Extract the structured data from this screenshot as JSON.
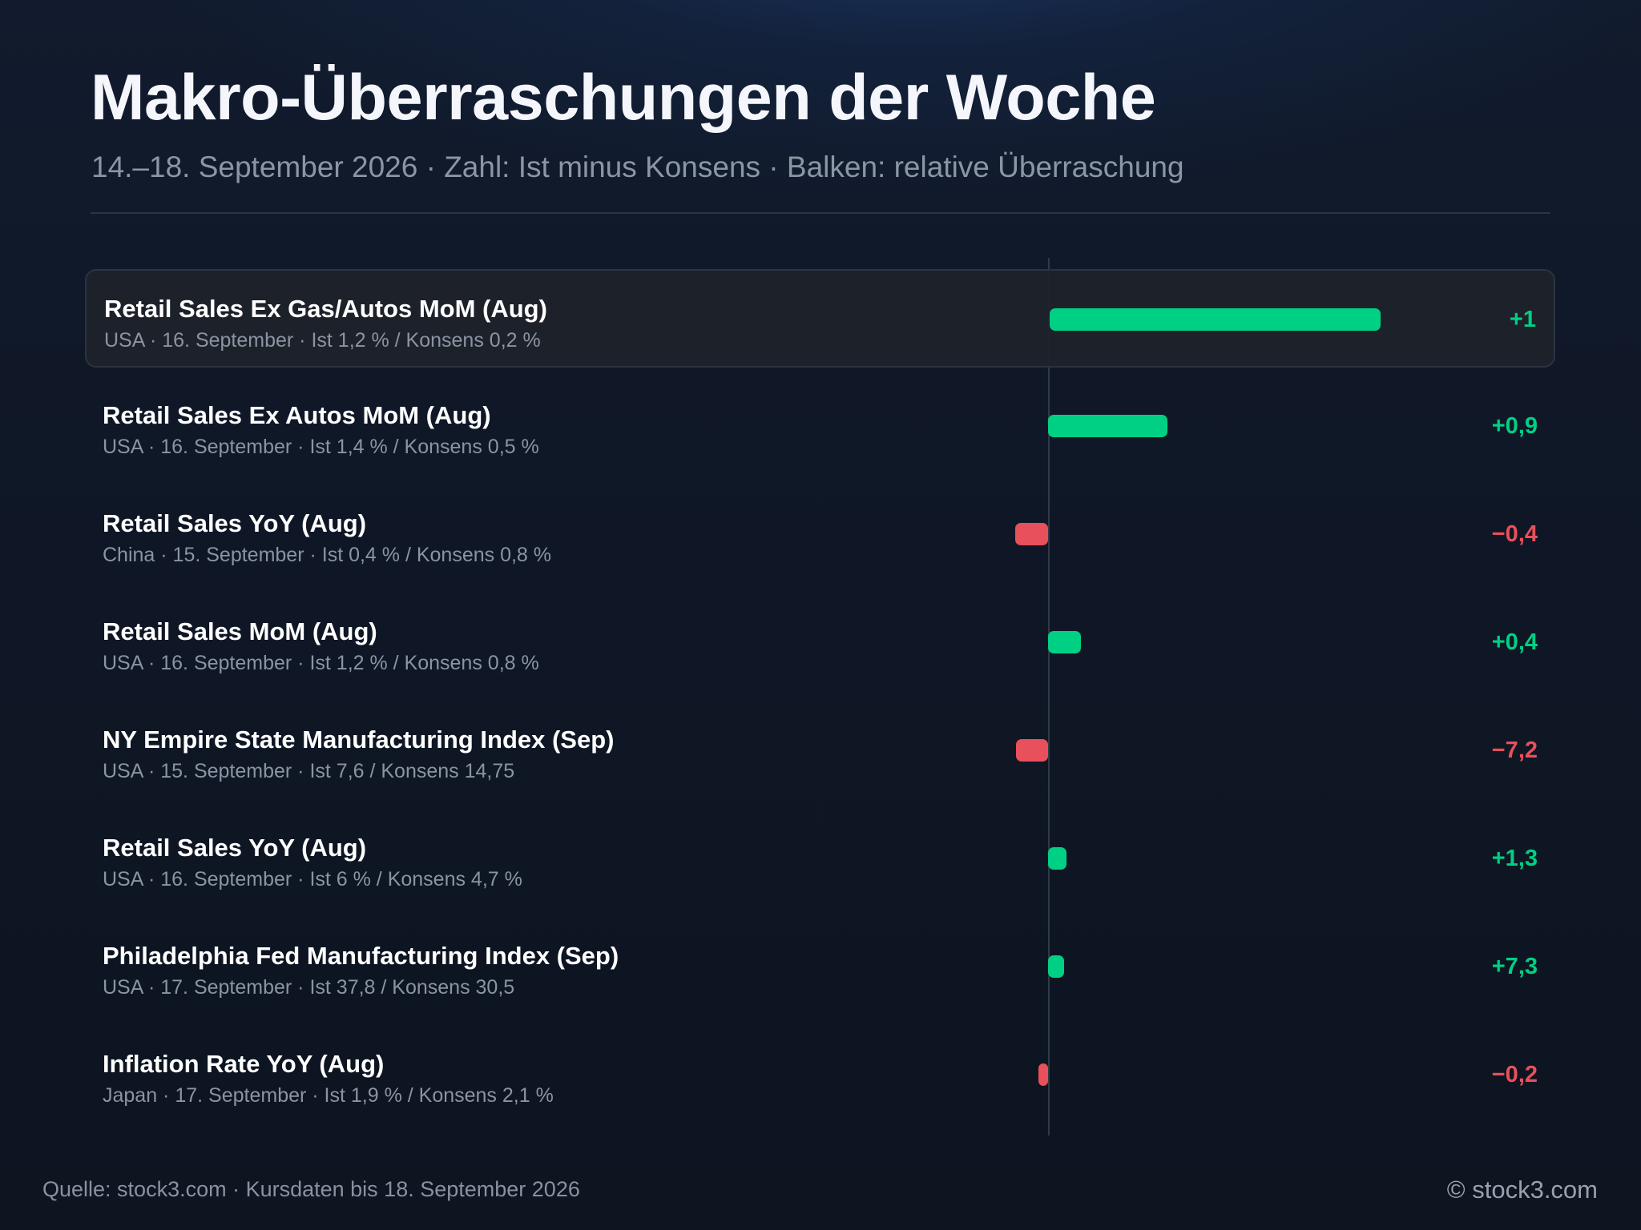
{
  "title": "Makro-Überraschungen der Woche",
  "subtitle": "14.–18. September 2026 · Zahl: Ist minus Konsens · Balken: relative Überraschung",
  "footer": {
    "source": "Quelle: stock3.com · Kursdaten bis 18. September 2026",
    "copyright": "© stock3.com"
  },
  "colors": {
    "positive": "#00d084",
    "negative": "#e8505b"
  },
  "chart_data": {
    "type": "bar",
    "orientation": "horizontal",
    "title": "Makro-Überraschungen der Woche",
    "subtitle": "14.–18. September 2026 · Zahl: Ist minus Konsens · Balken: relative Überraschung",
    "categories": [
      "Retail Sales Ex Gas/Autos MoM (Aug)",
      "Retail Sales Ex Autos MoM (Aug)",
      "Retail Sales YoY (Aug)",
      "Retail Sales MoM (Aug)",
      "NY Empire State Manufacturing Index (Sep)",
      "Retail Sales YoY (Aug)",
      "Philadelphia Fed Manufacturing Index (Sep)",
      "Inflation Rate YoY (Aug)"
    ],
    "rows": [
      {
        "label": "Retail Sales Ex Gas/Autos MoM (Aug)",
        "meta": "USA · 16. September · Ist 1,2 % / Konsens 0,2 %",
        "value": 1,
        "value_label": "+1",
        "relative": 5.0,
        "highlight": true
      },
      {
        "label": "Retail Sales Ex Autos MoM (Aug)",
        "meta": "USA · 16. September · Ist 1,4 % / Konsens 0,5 %",
        "value": 0.9,
        "value_label": "+0,9",
        "relative": 1.8
      },
      {
        "label": "Retail Sales YoY (Aug)",
        "meta": "China · 15. September · Ist 0,4 % / Konsens 0,8 %",
        "value": -0.4,
        "value_label": "−0,4",
        "relative": -0.5
      },
      {
        "label": "Retail Sales MoM (Aug)",
        "meta": "USA · 16. September · Ist 1,2 % / Konsens 0,8 %",
        "value": 0.4,
        "value_label": "+0,4",
        "relative": 0.5
      },
      {
        "label": "NY Empire State Manufacturing Index (Sep)",
        "meta": "USA · 15. September · Ist 7,6 / Konsens 14,75",
        "value": -7.2,
        "value_label": "−7,2",
        "relative": -0.49
      },
      {
        "label": "Retail Sales YoY (Aug)",
        "meta": "USA · 16. September · Ist 6 % / Konsens 4,7 %",
        "value": 1.3,
        "value_label": "+1,3",
        "relative": 0.28
      },
      {
        "label": "Philadelphia Fed Manufacturing Index (Sep)",
        "meta": "USA · 17. September · Ist 37,8 / Konsens 30,5",
        "value": 7.3,
        "value_label": "+7,3",
        "relative": 0.24
      },
      {
        "label": "Inflation Rate YoY (Aug)",
        "meta": "Japan · 17. September · Ist 1,9 % / Konsens 2,1 %",
        "value": -0.2,
        "value_label": "−0,2",
        "relative": -0.1
      }
    ],
    "values": [
      1,
      0.9,
      -0.4,
      0.4,
      -7.2,
      1.3,
      7.3,
      -0.2
    ],
    "relative_values": [
      5.0,
      1.8,
      -0.5,
      0.5,
      -0.49,
      0.28,
      0.24,
      -0.1
    ],
    "grid": false,
    "legend": "none"
  }
}
